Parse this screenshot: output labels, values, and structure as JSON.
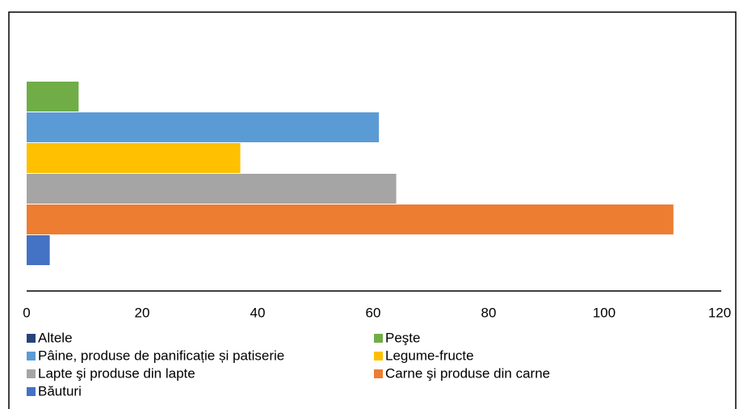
{
  "chart_data": {
    "type": "barh",
    "categories": [
      null
    ],
    "series": [
      {
        "name": "Altele",
        "color": "#264478",
        "values": [
          0
        ]
      },
      {
        "name": "Peşte",
        "color": "#70ad47",
        "values": [
          9
        ]
      },
      {
        "name": "Pâine, produse de panificație și patiserie",
        "color": "#5b9bd5",
        "values": [
          61
        ]
      },
      {
        "name": "Legume-fructe",
        "color": "#ffc000",
        "values": [
          37
        ]
      },
      {
        "name": "Lapte şi produse din lapte",
        "color": "#a5a5a5",
        "values": [
          64
        ]
      },
      {
        "name": "Carne şi produse din carne",
        "color": "#ed7d31",
        "values": [
          112
        ]
      },
      {
        "name": "Băuturi",
        "color": "#4472c4",
        "values": [
          4
        ]
      }
    ],
    "xlim": [
      0,
      120
    ],
    "xticks": [
      0,
      20,
      40,
      60,
      80,
      100,
      120
    ],
    "legend": "bottom"
  }
}
